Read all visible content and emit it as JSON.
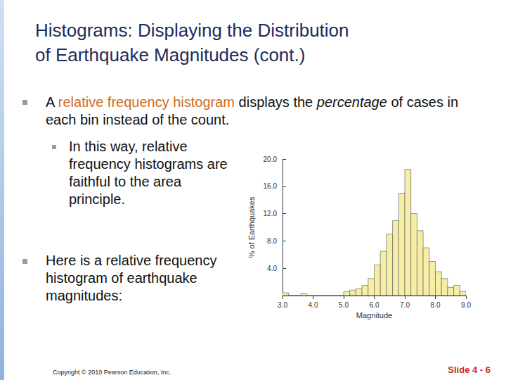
{
  "title_lines": [
    "Histograms: Displaying the Distribution",
    "of Earthquake Magnitudes (cont.)"
  ],
  "bullets": [
    {
      "segments": [
        {
          "text": "A ",
          "style": "plain"
        },
        {
          "text": "relative frequency histogram",
          "style": "highlight"
        },
        {
          "text": " displays the ",
          "style": "plain"
        },
        {
          "text": "percentage",
          "style": "italic"
        },
        {
          "text": " of cases in each bin instead of the count.",
          "style": "plain"
        }
      ],
      "sub": [
        {
          "segments": [
            {
              "text": "In this way, relative frequency histograms are faithful to the area principle.",
              "style": "plain"
            }
          ]
        }
      ]
    },
    {
      "segments": [
        {
          "text": "Here is a relative frequency histogram of earthquake magnitudes:",
          "style": "plain"
        }
      ],
      "sub": []
    }
  ],
  "footer": "Copyright © 2010 Pearson Education, Inc.",
  "slide_number": "Slide 4 - 6",
  "chart_data": {
    "type": "histogram",
    "xlabel": "Magnitude",
    "ylabel": "% of Earthquakes",
    "bins": [
      3,
      3.2,
      3.4,
      3.6,
      3.8,
      4,
      4.2,
      4.4,
      4.6,
      4.8,
      5,
      5.2,
      5.4,
      5.6,
      5.8,
      6,
      6.2,
      6.4,
      6.6,
      6.8,
      7,
      7.2,
      7.4,
      7.6,
      7.8,
      8,
      8.2,
      8.4,
      8.6,
      8.8,
      9
    ],
    "values": [
      0.4,
      0,
      0,
      0.3,
      0,
      0,
      0,
      0,
      0,
      0,
      0.6,
      0.8,
      1.0,
      1.5,
      2.5,
      4.5,
      6.5,
      9.0,
      11.0,
      15.0,
      18.5,
      12.0,
      9.5,
      7.0,
      5.0,
      3.5,
      2.5,
      1.2,
      1.5,
      0.6
    ],
    "color": "#f6eea6",
    "xlim": [
      3,
      9
    ],
    "ylim": [
      0,
      20
    ],
    "xticks": [
      {
        "value": 3,
        "label": "3.0"
      },
      {
        "value": 4,
        "label": "4.0"
      },
      {
        "value": 5,
        "label": "5.0"
      },
      {
        "value": 6,
        "label": "6.0"
      },
      {
        "value": 7,
        "label": "7.0"
      },
      {
        "value": 8,
        "label": "8.0"
      },
      {
        "value": 9,
        "label": "9.0"
      }
    ],
    "yticks": [
      {
        "value": 4,
        "label": "4.0"
      },
      {
        "value": 8,
        "label": "8.0"
      },
      {
        "value": 12,
        "label": "12.0"
      },
      {
        "value": 16,
        "label": "16.0"
      },
      {
        "value": 20,
        "label": "20.0"
      }
    ],
    "grid": false
  }
}
